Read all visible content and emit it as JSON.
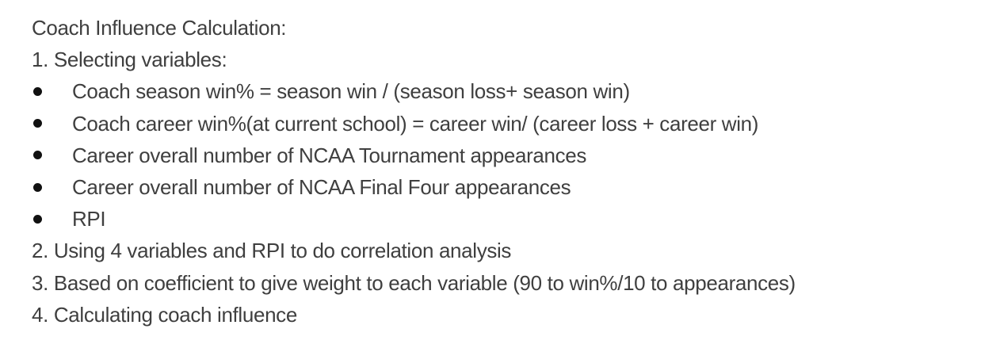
{
  "document": {
    "title": "Coach Influence Calculation:",
    "step1": "1. Selecting variables:",
    "bullets": [
      "Coach season win% = season win / (season loss+ season win)",
      "Coach career win%(at current school) = career win/ (career loss + career win)",
      "Career overall number of NCAA Tournament appearances",
      "Career overall number of NCAA Final Four appearances",
      "RPI"
    ],
    "step2": "2. Using 4 variables and RPI to do correlation analysis",
    "step3": "3. Based on coefficient to give weight to each variable (90 to win%/10 to appearances)",
    "step4": "4. Calculating coach influence"
  },
  "colors": {
    "text": "#3f3f3f",
    "bullet": "#111111",
    "background": "#ffffff"
  }
}
